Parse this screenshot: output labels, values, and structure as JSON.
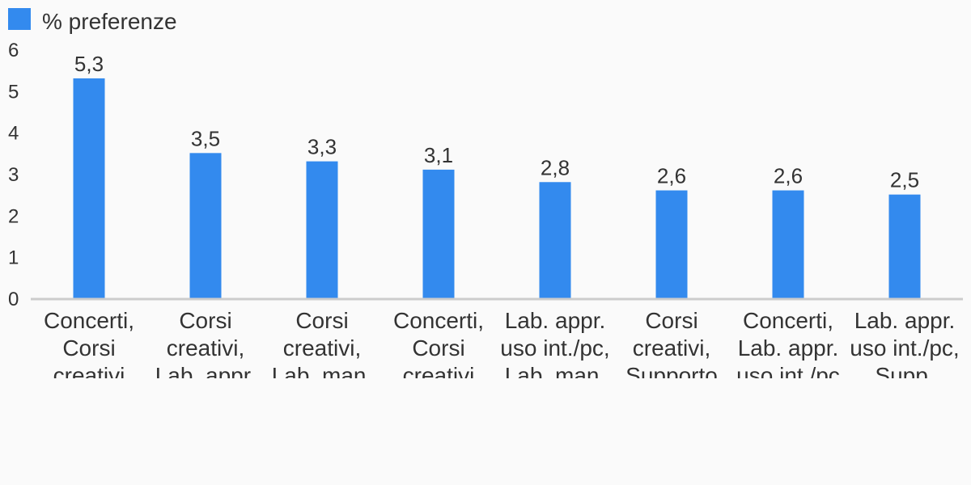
{
  "chart_data": {
    "type": "bar",
    "categories": [
      [
        "Concerti,",
        "Corsi",
        "creativi"
      ],
      [
        "Corsi",
        "creativi,",
        "Lab. appr."
      ],
      [
        "Corsi",
        "creativi,",
        "Lab. man."
      ],
      [
        "Concerti,",
        "Corsi",
        "creativi"
      ],
      [
        "Lab. appr.",
        "uso int./pc,",
        "Lab. man."
      ],
      [
        "Corsi",
        "creativi,",
        "Supporto"
      ],
      [
        "Concerti,",
        "Lab. appr.",
        "uso int./pc"
      ],
      [
        "Lab. appr.",
        "uso int./pc,",
        "Supp."
      ]
    ],
    "series": [
      {
        "name": "% preferenze",
        "values": [
          5.3,
          3.5,
          3.3,
          3.1,
          2.8,
          2.6,
          2.6,
          2.5
        ],
        "value_labels": [
          "5,3",
          "3,5",
          "3,3",
          "3,1",
          "2,8",
          "2,6",
          "2,6",
          "2,5"
        ]
      }
    ],
    "ylim": [
      0,
      6
    ],
    "yticks": [
      "0",
      "1",
      "2",
      "3",
      "4",
      "5",
      "6"
    ],
    "legend_position": "top-left",
    "grid": false,
    "bar_color": "#338aee"
  }
}
